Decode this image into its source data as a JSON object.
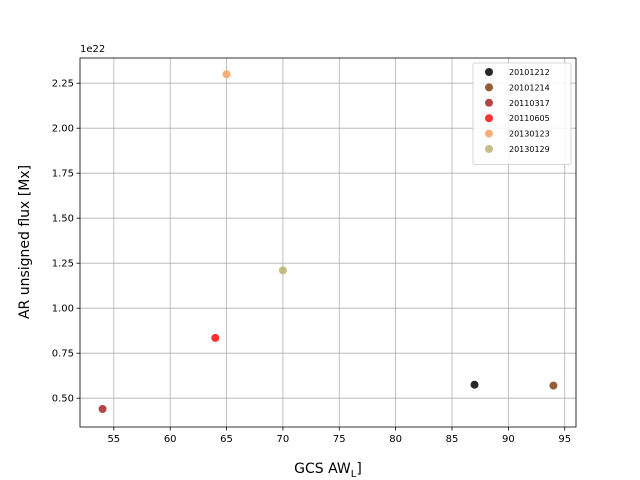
{
  "chart_data": {
    "type": "scatter",
    "title": "",
    "xlabel": "GCS AW",
    "xlabel_subscript": "L",
    "xlabel_suffix": "]",
    "ylabel": "AR unsigned flux [Mx]",
    "y_offset_label": "1e22",
    "xlim": [
      52.0,
      96.0
    ],
    "ylim": [
      0.34,
      2.39
    ],
    "x_ticks": [
      55,
      60,
      65,
      70,
      75,
      80,
      85,
      90,
      95
    ],
    "x_tick_labels": [
      "55",
      "60",
      "65",
      "70",
      "75",
      "80",
      "85",
      "90",
      "95"
    ],
    "y_ticks": [
      0.5,
      0.75,
      1.0,
      1.25,
      1.5,
      1.75,
      2.0,
      2.25
    ],
    "y_tick_labels": [
      "0.50",
      "0.75",
      "1.00",
      "1.25",
      "1.50",
      "1.75",
      "2.00",
      "2.25"
    ],
    "grid": true,
    "legend_position": "top-right",
    "series": [
      {
        "name": "20101212",
        "color": "#111111",
        "points": [
          {
            "x": 87.0,
            "y": 0.575
          }
        ]
      },
      {
        "name": "20101214",
        "color": "#8b4a1e",
        "points": [
          {
            "x": 94.0,
            "y": 0.57
          }
        ]
      },
      {
        "name": "20110317",
        "color": "#a83232",
        "points": [
          {
            "x": 54.0,
            "y": 0.44
          }
        ]
      },
      {
        "name": "20110605",
        "color": "#ff1a1a",
        "points": [
          {
            "x": 64.0,
            "y": 0.835
          }
        ]
      },
      {
        "name": "20130123",
        "color": "#f4a66a",
        "points": [
          {
            "x": 65.0,
            "y": 2.3
          }
        ]
      },
      {
        "name": "20130129",
        "color": "#bdb77a",
        "points": [
          {
            "x": 70.0,
            "y": 1.21
          }
        ]
      }
    ]
  }
}
